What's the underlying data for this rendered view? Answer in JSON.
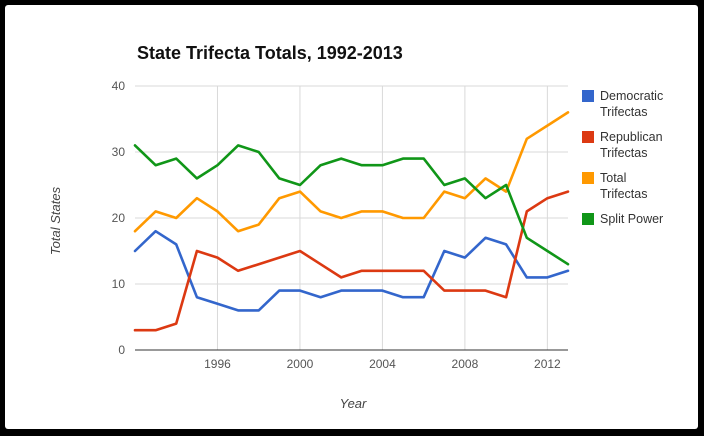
{
  "chart_data": {
    "type": "line",
    "title": "State Trifecta Totals, 1992-2013",
    "xlabel": "Year",
    "ylabel": "Total States",
    "xlim": [
      1992,
      2013
    ],
    "ylim": [
      0,
      40
    ],
    "xticks": [
      "1996",
      "2000",
      "2004",
      "2008",
      "2012"
    ],
    "yticks": [
      "0",
      "10",
      "20",
      "30",
      "40"
    ],
    "grid": true,
    "legend_position": "right",
    "x": [
      1992,
      1993,
      1994,
      1995,
      1996,
      1997,
      1998,
      1999,
      2000,
      2001,
      2002,
      2003,
      2004,
      2005,
      2006,
      2007,
      2008,
      2009,
      2010,
      2011,
      2012,
      2013
    ],
    "series": [
      {
        "name": "Democratic Trifectas",
        "color": "#3366cc",
        "values": [
          15,
          18,
          16,
          8,
          7,
          6,
          6,
          9,
          9,
          8,
          9,
          9,
          9,
          8,
          8,
          15,
          14,
          17,
          16,
          11,
          11,
          12
        ]
      },
      {
        "name": "Republican Trifectas",
        "color": "#dc3912",
        "values": [
          3,
          3,
          4,
          15,
          14,
          12,
          13,
          14,
          15,
          13,
          11,
          12,
          12,
          12,
          12,
          9,
          9,
          9,
          8,
          21,
          23,
          24
        ]
      },
      {
        "name": "Total Trifectas",
        "color": "#ff9900",
        "values": [
          18,
          21,
          20,
          23,
          21,
          18,
          19,
          23,
          24,
          21,
          20,
          21,
          21,
          20,
          20,
          24,
          23,
          26,
          24,
          32,
          34,
          36
        ]
      },
      {
        "name": "Split Power",
        "color": "#109618",
        "values": [
          31,
          28,
          29,
          26,
          28,
          31,
          30,
          26,
          25,
          28,
          29,
          28,
          28,
          29,
          29,
          25,
          26,
          23,
          25,
          17,
          15,
          13
        ]
      }
    ]
  }
}
